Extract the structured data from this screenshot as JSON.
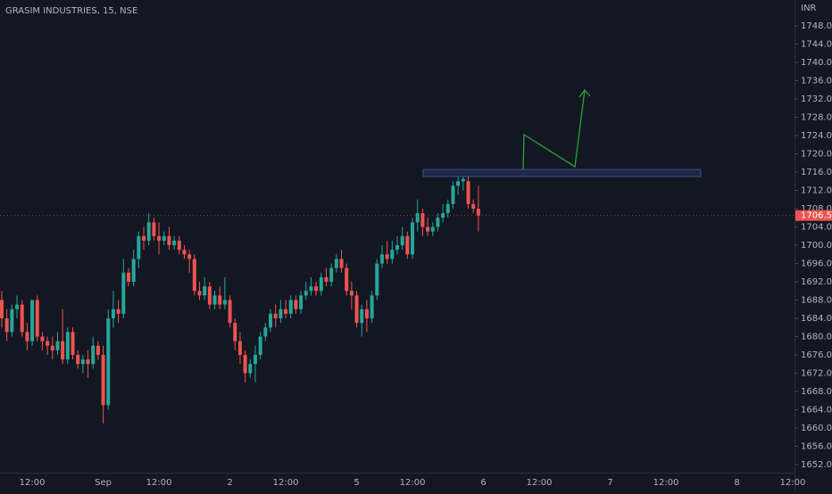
{
  "chart_data": {
    "type": "candlestick",
    "title": "GRASIM INDUSTRIES, 15, NSE",
    "currency": "INR",
    "up_color": "#26a69a",
    "down_color": "#ef5350",
    "categories": [
      null,
      null,
      null,
      null,
      null,
      null,
      "12:00",
      null,
      null,
      null,
      null,
      null,
      null,
      null,
      null,
      null,
      null,
      null,
      null,
      null,
      "Sep",
      null,
      null,
      null,
      null,
      null,
      null,
      null,
      null,
      null,
      null,
      "12:00",
      null,
      null,
      null,
      null,
      null,
      null,
      null,
      null,
      null,
      null,
      null,
      null,
      null,
      "2",
      null,
      null,
      null,
      null,
      null,
      null,
      null,
      null,
      null,
      null,
      "12:00",
      null,
      null,
      null,
      null,
      null,
      null,
      null,
      null,
      null,
      null,
      null,
      null,
      null,
      "5",
      null,
      null,
      null,
      null,
      null,
      null,
      null,
      null,
      null,
      null,
      "12:00",
      null,
      null,
      null,
      null,
      null,
      null,
      null,
      null,
      null,
      null,
      null,
      null,
      null,
      "6",
      null,
      null,
      null,
      null,
      null,
      null,
      null,
      null,
      null,
      null,
      "12:00",
      null,
      null,
      null,
      null,
      null,
      null,
      null,
      null,
      null,
      null,
      null,
      null,
      null,
      "7",
      null,
      null,
      null,
      null,
      null,
      null,
      null,
      null,
      null,
      null,
      "12:00",
      null,
      null,
      null,
      null,
      null,
      null,
      null,
      null,
      null,
      null,
      null,
      null,
      null,
      "8",
      null,
      null,
      null,
      null,
      null,
      null,
      null,
      null,
      null,
      null,
      "12:00"
    ],
    "open": [
      1688,
      1684,
      1681,
      1686,
      1687,
      1681,
      1679,
      1688,
      1680,
      1679,
      1678,
      1677,
      1679,
      1675,
      1681,
      1676,
      1674,
      1675,
      1674,
      1678,
      1676,
      1665,
      1684,
      1686,
      1685,
      1694,
      1692,
      1697,
      1702,
      1701,
      1705,
      1702,
      1701,
      1702,
      1700,
      1701,
      1699,
      1698,
      1697,
      1690,
      1689,
      1691,
      1687,
      1689,
      1687,
      1688,
      1683,
      1679,
      1676,
      1672,
      1674,
      1676,
      1680,
      1682,
      1685,
      1684,
      1686,
      1685,
      1688,
      1686,
      1689,
      1690,
      1691,
      1690,
      1693,
      1692,
      1695,
      1697,
      1695,
      1690,
      1689,
      1683,
      1686,
      1684,
      1689,
      1696,
      1698,
      1697,
      1699,
      1700,
      1702,
      1698,
      1705,
      1707,
      1704,
      1703,
      1704,
      1706,
      1707,
      1709,
      1713,
      1714,
      1714,
      1709,
      1708,
      null,
      null,
      null,
      null,
      null,
      null,
      null,
      null,
      null,
      null,
      null,
      null,
      null,
      null,
      null,
      null,
      null,
      null,
      null,
      null,
      null,
      null,
      null,
      null,
      null,
      null,
      null,
      null,
      null,
      null,
      null,
      null,
      null,
      null,
      null,
      null,
      null,
      null,
      null,
      null,
      null,
      null,
      null,
      null,
      null,
      null,
      null,
      null,
      null,
      null,
      null,
      null,
      null,
      null,
      null,
      null,
      null,
      null,
      null,
      null,
      null,
      null
    ],
    "high": [
      1690,
      1686,
      1687,
      1689,
      1688,
      1683,
      1688,
      1689,
      1681,
      1680,
      1680,
      1681,
      1686,
      1682,
      1682,
      1677,
      1676,
      1677,
      1680,
      1679,
      1678,
      1686,
      1690,
      1688,
      1697,
      1695,
      1699,
      1703,
      1704,
      1707,
      1706,
      1705,
      1703,
      1704,
      1702,
      1702,
      1700,
      1699,
      1698,
      1692,
      1693,
      1692,
      1690,
      1691,
      1693,
      1689,
      1684,
      1681,
      1677,
      1675,
      1678,
      1681,
      1683,
      1686,
      1687,
      1688,
      1688,
      1689,
      1689,
      1690,
      1692,
      1693,
      1692,
      1694,
      1695,
      1696,
      1698,
      1699,
      1696,
      1692,
      1690,
      1687,
      1688,
      1690,
      1697,
      1700,
      1701,
      1701,
      1702,
      1704,
      1703,
      1706,
      1710,
      1708,
      1706,
      1705,
      1707,
      1709,
      1710,
      1714,
      1715,
      1715,
      1715,
      1710,
      1713,
      null,
      null,
      null,
      null,
      null,
      null,
      null,
      null,
      null,
      null,
      null,
      null,
      null,
      null,
      null,
      null,
      null,
      null,
      null,
      null,
      null,
      null,
      null,
      null,
      null,
      null,
      null,
      null,
      null,
      null,
      null,
      null,
      null,
      null,
      null,
      null,
      null,
      null,
      null,
      null,
      null,
      null,
      null,
      null,
      null,
      null,
      null,
      null,
      null,
      null,
      null,
      null,
      null,
      null,
      null,
      null,
      null,
      null,
      null,
      null,
      null,
      null
    ],
    "low": [
      1682,
      1679,
      1680,
      1684,
      1680,
      1677,
      1678,
      1679,
      1677,
      1676,
      1675,
      1676,
      1674,
      1674,
      1675,
      1673,
      1672,
      1671,
      1673,
      1675,
      1661,
      1664,
      1682,
      1683,
      1684,
      1691,
      1691,
      1695,
      1699,
      1700,
      1701,
      1698,
      1700,
      1699,
      1699,
      1698,
      1697,
      1694,
      1689,
      1688,
      1688,
      1686,
      1686,
      1686,
      1686,
      1682,
      1677,
      1674,
      1670,
      1671,
      1670,
      1675,
      1679,
      1681,
      1682,
      1683,
      1684,
      1684,
      1685,
      1685,
      1688,
      1689,
      1689,
      1689,
      1691,
      1691,
      1694,
      1694,
      1689,
      1686,
      1682,
      1680,
      1681,
      1683,
      1688,
      1695,
      1696,
      1696,
      1698,
      1699,
      1697,
      1697,
      1703,
      1702,
      1702,
      1702,
      1703,
      1705,
      1706,
      1708,
      1711,
      1712,
      1708,
      1707,
      1703,
      null,
      null,
      null,
      null,
      null,
      null,
      null,
      null,
      null,
      null,
      null,
      null,
      null,
      null,
      null,
      null,
      null,
      null,
      null,
      null,
      null,
      null,
      null,
      null,
      null,
      null,
      null,
      null,
      null,
      null,
      null,
      null,
      null,
      null,
      null,
      null,
      null,
      null,
      null,
      null,
      null,
      null,
      null,
      null,
      null,
      null,
      null,
      null,
      null,
      null,
      null,
      null,
      null,
      null,
      null,
      null,
      null,
      null,
      null,
      null,
      null,
      null
    ],
    "close": [
      1684,
      1681,
      1686,
      1687,
      1681,
      1679,
      1688,
      1680,
      1679,
      1678,
      1677,
      1679,
      1675,
      1681,
      1676,
      1674,
      1675,
      1674,
      1678,
      1676,
      1665,
      1684,
      1686,
      1685,
      1694,
      1692,
      1697,
      1702,
      1701,
      1705,
      1702,
      1701,
      1702,
      1700,
      1701,
      1699,
      1698,
      1697,
      1690,
      1689,
      1691,
      1687,
      1689,
      1687,
      1688,
      1683,
      1679,
      1676,
      1672,
      1674,
      1676,
      1680,
      1682,
      1685,
      1684,
      1686,
      1685,
      1688,
      1686,
      1689,
      1690,
      1691,
      1690,
      1693,
      1692,
      1695,
      1697,
      1695,
      1690,
      1689,
      1683,
      1686,
      1684,
      1689,
      1696,
      1698,
      1697,
      1699,
      1700,
      1702,
      1698,
      1705,
      1707,
      1704,
      1703,
      1704,
      1706,
      1707,
      1709,
      1713,
      1714,
      1714.5,
      1709,
      1708,
      1706.5,
      null,
      null,
      null,
      null,
      null,
      null,
      null,
      null,
      null,
      null,
      null,
      null,
      null,
      null,
      null,
      null,
      null,
      null,
      null,
      null,
      null,
      null,
      null,
      null,
      null,
      null,
      null,
      null,
      null,
      null,
      null,
      null,
      null,
      null,
      null,
      null,
      null,
      null,
      null,
      null,
      null,
      null,
      null,
      null,
      null,
      null,
      null,
      null,
      null,
      null,
      null,
      null,
      null,
      null,
      null,
      null,
      null,
      null,
      null,
      null,
      null,
      null
    ],
    "last_price": {
      "value": 1706.5,
      "label": "1706.50"
    },
    "ylim": [
      1650.24,
      1753.66
    ],
    "yticks": [
      {
        "value": 1652,
        "label": "1652.00"
      },
      {
        "value": 1656,
        "label": "1656.00"
      },
      {
        "value": 1660,
        "label": "1660.00"
      },
      {
        "value": 1664,
        "label": "1664.00"
      },
      {
        "value": 1668,
        "label": "1668.00"
      },
      {
        "value": 1672,
        "label": "1672.00"
      },
      {
        "value": 1676,
        "label": "1676.00"
      },
      {
        "value": 1680,
        "label": "1680.00"
      },
      {
        "value": 1684,
        "label": "1684.00"
      },
      {
        "value": 1688,
        "label": "1688.00"
      },
      {
        "value": 1692,
        "label": "1692.00"
      },
      {
        "value": 1696,
        "label": "1696.00"
      },
      {
        "value": 1700,
        "label": "1700.00"
      },
      {
        "value": 1704,
        "label": "1704.00"
      },
      {
        "value": 1708,
        "label": "1708.00"
      },
      {
        "value": 1712,
        "label": "1712.00"
      },
      {
        "value": 1716,
        "label": "1716.00"
      },
      {
        "value": 1720,
        "label": "1720.00"
      },
      {
        "value": 1724,
        "label": "1724.00"
      },
      {
        "value": 1728,
        "label": "1728.00"
      },
      {
        "value": 1732,
        "label": "1732.00"
      },
      {
        "value": 1736,
        "label": "1736.00"
      },
      {
        "value": 1740,
        "label": "1740.00"
      },
      {
        "value": 1744,
        "label": "1744.00"
      },
      {
        "value": 1748,
        "label": "1748.00"
      }
    ],
    "grid": false
  }
}
